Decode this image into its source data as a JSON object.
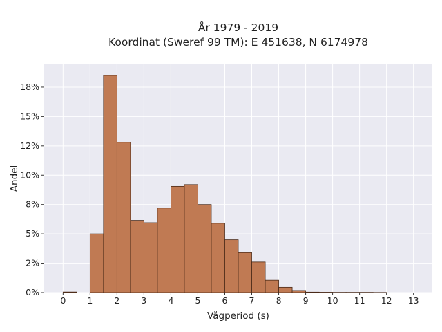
{
  "chart_data": {
    "type": "bar",
    "title_line1": "År 1979 - 2019",
    "title_line2": "Koordinat (Sweref 99 TM): E 451638, N 6174978",
    "xlabel": "Vågperiod (s)",
    "ylabel": "Andel",
    "grid": true,
    "background": "#eaeaf2",
    "bar_color": "#c07a53",
    "bar_edge_color": "#4a2a18",
    "xlim": [
      -0.7,
      13.7
    ],
    "ylim": [
      0,
      0.195
    ],
    "bin_width": 0.5,
    "x_ticks": [
      0,
      1,
      2,
      3,
      4,
      5,
      6,
      7,
      8,
      9,
      10,
      11,
      12,
      13
    ],
    "x_tick_labels": [
      "0",
      "1",
      "2",
      "3",
      "4",
      "5",
      "6",
      "7",
      "8",
      "9",
      "10",
      "11",
      "12",
      "13"
    ],
    "y_ticks": [
      0,
      0.025,
      0.05,
      0.075,
      0.1,
      0.125,
      0.15,
      0.175
    ],
    "y_tick_labels": [
      "0%",
      "2%",
      "5%",
      "8%",
      "10%",
      "12%",
      "15%",
      "18%"
    ],
    "bins": [
      {
        "x": 0.0,
        "value": 0.0005
      },
      {
        "x": 0.5,
        "value": 0.0
      },
      {
        "x": 1.0,
        "value": 0.05
      },
      {
        "x": 1.5,
        "value": 0.185
      },
      {
        "x": 2.0,
        "value": 0.128
      },
      {
        "x": 2.5,
        "value": 0.0615
      },
      {
        "x": 3.0,
        "value": 0.0595
      },
      {
        "x": 3.5,
        "value": 0.072
      },
      {
        "x": 4.0,
        "value": 0.0905
      },
      {
        "x": 4.5,
        "value": 0.092
      },
      {
        "x": 5.0,
        "value": 0.075
      },
      {
        "x": 5.5,
        "value": 0.059
      },
      {
        "x": 6.0,
        "value": 0.045
      },
      {
        "x": 6.5,
        "value": 0.034
      },
      {
        "x": 7.0,
        "value": 0.026
      },
      {
        "x": 7.5,
        "value": 0.0105
      },
      {
        "x": 8.0,
        "value": 0.0045
      },
      {
        "x": 8.5,
        "value": 0.0018
      },
      {
        "x": 9.0,
        "value": 0.0004
      },
      {
        "x": 9.5,
        "value": 0.0003
      },
      {
        "x": 10.0,
        "value": 0.0002
      },
      {
        "x": 10.5,
        "value": 0.0002
      },
      {
        "x": 11.0,
        "value": 0.0002
      },
      {
        "x": 11.5,
        "value": 0.0001
      }
    ]
  }
}
